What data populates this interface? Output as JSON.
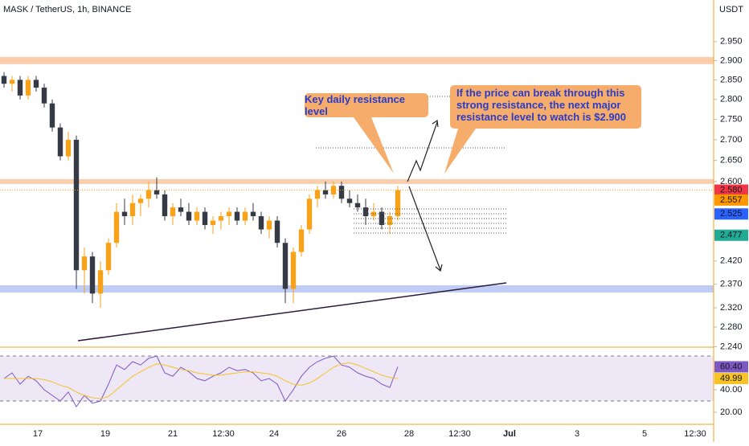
{
  "chart_data": {
    "type": "candlestick",
    "title": "MASK / TetherUS, 1h, BINANCE",
    "currency": "USDT",
    "log_scale": true,
    "ylim": [
      2.239,
      3.063
    ],
    "yticks": [
      {
        "value": 2.95,
        "label": "2.950"
      },
      {
        "value": 2.9,
        "label": "2.900"
      },
      {
        "value": 2.85,
        "label": "2.850"
      },
      {
        "value": 2.8,
        "label": "2.800"
      },
      {
        "value": 2.75,
        "label": "2.750"
      },
      {
        "value": 2.7,
        "label": "2.700"
      },
      {
        "value": 2.65,
        "label": "2.650"
      },
      {
        "value": 2.6,
        "label": "2.600"
      },
      {
        "value": 2.42,
        "label": "2.420"
      },
      {
        "value": 2.37,
        "label": "2.370"
      },
      {
        "value": 2.32,
        "label": "2.320"
      },
      {
        "value": 2.28,
        "label": "2.280"
      },
      {
        "value": 2.24,
        "label": "2.240"
      }
    ],
    "xticks": [
      "17",
      "19",
      "21",
      "12:30",
      "24",
      "26",
      "28",
      "12:30",
      "Jul",
      "3",
      "5",
      "12:30"
    ],
    "up_color": "#f7a21b",
    "down_color": "#363a45",
    "open": [
      2.86,
      2.84,
      2.85,
      2.81,
      2.85,
      2.83,
      2.79,
      2.73,
      2.66,
      2.7,
      2.4,
      2.43,
      2.35,
      2.4,
      2.46,
      2.53,
      2.52,
      2.55,
      2.56,
      2.58,
      2.57,
      2.52,
      2.54,
      2.53,
      2.51,
      2.53,
      2.5,
      2.51,
      2.52,
      2.53,
      2.51,
      2.53,
      2.52,
      2.49,
      2.51,
      2.46,
      2.36,
      2.44,
      2.49,
      2.56,
      2.58,
      2.57,
      2.59,
      2.56,
      2.55,
      2.54,
      2.52,
      2.53,
      2.5,
      2.52
    ],
    "high": [
      2.87,
      2.86,
      2.86,
      2.86,
      2.86,
      2.84,
      2.8,
      2.74,
      2.72,
      2.71,
      2.45,
      2.44,
      2.42,
      2.47,
      2.55,
      2.56,
      2.57,
      2.57,
      2.6,
      2.61,
      2.58,
      2.55,
      2.56,
      2.55,
      2.54,
      2.54,
      2.52,
      2.53,
      2.54,
      2.54,
      2.54,
      2.55,
      2.53,
      2.52,
      2.52,
      2.47,
      2.45,
      2.5,
      2.57,
      2.59,
      2.6,
      2.6,
      2.6,
      2.58,
      2.57,
      2.56,
      2.55,
      2.54,
      2.53,
      2.59
    ],
    "low": [
      2.83,
      2.82,
      2.8,
      2.8,
      2.82,
      2.78,
      2.72,
      2.65,
      2.65,
      2.36,
      2.35,
      2.33,
      2.32,
      2.39,
      2.45,
      2.5,
      2.5,
      2.52,
      2.54,
      2.56,
      2.51,
      2.5,
      2.52,
      2.5,
      2.5,
      2.49,
      2.48,
      2.49,
      2.5,
      2.5,
      2.5,
      2.51,
      2.48,
      2.47,
      2.45,
      2.33,
      2.33,
      2.43,
      2.48,
      2.54,
      2.56,
      2.56,
      2.55,
      2.54,
      2.53,
      2.5,
      2.51,
      2.49,
      2.48,
      2.51
    ],
    "close": [
      2.84,
      2.85,
      2.81,
      2.85,
      2.83,
      2.79,
      2.73,
      2.66,
      2.7,
      2.4,
      2.43,
      2.35,
      2.4,
      2.46,
      2.53,
      2.52,
      2.55,
      2.56,
      2.58,
      2.57,
      2.52,
      2.54,
      2.53,
      2.51,
      2.53,
      2.5,
      2.51,
      2.52,
      2.53,
      2.51,
      2.53,
      2.52,
      2.49,
      2.51,
      2.46,
      2.36,
      2.44,
      2.49,
      2.56,
      2.58,
      2.57,
      2.59,
      2.56,
      2.55,
      2.54,
      2.52,
      2.53,
      2.5,
      2.52,
      2.58
    ],
    "price_labels": [
      {
        "value": 2.58,
        "label": "2.580",
        "color": "#f23645"
      },
      {
        "value": 2.557,
        "label": "2.557",
        "color": "#ff9800"
      },
      {
        "value": 2.525,
        "label": "2.525",
        "color": "#2962ff"
      },
      {
        "value": 2.477,
        "label": "2.477",
        "color": "#22ab94"
      }
    ],
    "zones": [
      {
        "value": 2.9,
        "color": "#f9c9a4"
      },
      {
        "value": 2.6,
        "color": "#f9c9a4"
      },
      {
        "value": 2.36,
        "color": "#b8c8f5"
      }
    ],
    "annotations": [
      "Key daily resistance level",
      "If the price can break through this strong resistance, the next major resistance level to watch is $2.900"
    ],
    "indicator": {
      "type": "line",
      "ylim": [
        9.3,
        74.3
      ],
      "yticks": [
        {
          "value": 40,
          "label": "40.00"
        },
        {
          "value": 20,
          "label": "20.00"
        }
      ],
      "band": [
        30,
        70
      ],
      "series": [
        {
          "color": "#7e57c2",
          "values": [
            50,
            55,
            45,
            52,
            48,
            40,
            35,
            30,
            38,
            25,
            35,
            28,
            30,
            45,
            62,
            58,
            65,
            62,
            68,
            70,
            55,
            52,
            60,
            56,
            50,
            48,
            52,
            55,
            60,
            57,
            58,
            55,
            48,
            50,
            45,
            30,
            40,
            52,
            60,
            65,
            68,
            70,
            62,
            60,
            55,
            52,
            50,
            45,
            42,
            60.4
          ]
        },
        {
          "color": "#f7c325",
          "values": [
            50,
            50,
            50,
            50,
            50,
            49,
            47,
            44,
            42,
            38,
            35,
            33,
            32,
            34,
            40,
            46,
            52,
            56,
            60,
            63,
            62,
            60,
            58,
            57,
            55,
            54,
            53,
            53,
            54,
            55,
            56,
            56,
            55,
            54,
            52,
            48,
            45,
            44,
            46,
            50,
            55,
            60,
            63,
            64,
            62,
            59,
            56,
            53,
            51,
            49.99
          ]
        }
      ],
      "badges": [
        {
          "value": 60.4,
          "label": "60.40",
          "color": "#7e57c2"
        },
        {
          "value": 49.99,
          "label": "49.99",
          "color": "#f7c325"
        }
      ]
    }
  }
}
